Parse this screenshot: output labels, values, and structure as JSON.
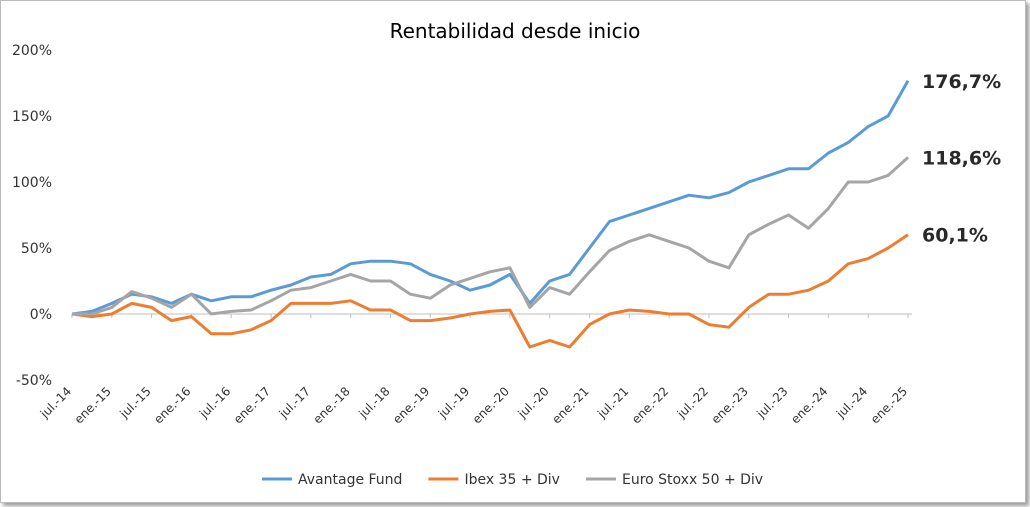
{
  "chart_data": {
    "type": "line",
    "title": "Rentabilidad desde inicio",
    "categories": [
      "jul.-14",
      null,
      "ene.-15",
      null,
      "jul.-15",
      null,
      "ene.-16",
      null,
      "jul.-16",
      null,
      "ene.-17",
      null,
      "jul.-17",
      null,
      "ene.-18",
      null,
      "jul.-18",
      null,
      "ene.-19",
      null,
      "jul.-19",
      null,
      "ene.-20",
      null,
      "jul.-20",
      null,
      "ene.-21",
      null,
      "jul.-21",
      null,
      "ene.-22",
      null,
      "jul.-22",
      null,
      "ene.-23",
      null,
      "jul.-23",
      null,
      "ene.-24",
      null,
      "jul.-24",
      null,
      "ene.-25"
    ],
    "series": [
      {
        "name": "Avantage Fund",
        "color": "#5b9bd5",
        "values": [
          0,
          2,
          8,
          15,
          13,
          8,
          15,
          10,
          13,
          13,
          18,
          22,
          28,
          30,
          38,
          40,
          40,
          38,
          30,
          25,
          18,
          22,
          30,
          8,
          25,
          30,
          50,
          70,
          75,
          80,
          85,
          90,
          88,
          92,
          100,
          105,
          110,
          110,
          122,
          130,
          142,
          150,
          176.7
        ],
        "value_labels": [
          null,
          null,
          null,
          null,
          null,
          null,
          null,
          null,
          null,
          null,
          null,
          null,
          null,
          null,
          null,
          null,
          null,
          null,
          null,
          null,
          null,
          null,
          null,
          null,
          null,
          null,
          null,
          null,
          null,
          null,
          null,
          null,
          null,
          null,
          null,
          null,
          null,
          null,
          null,
          null,
          null,
          null,
          "176,7%"
        ]
      },
      {
        "name": "Ibex 35 + Div",
        "color": "#ed7d31",
        "values": [
          0,
          -2,
          0,
          8,
          5,
          -5,
          -2,
          -15,
          -15,
          -12,
          -5,
          8,
          8,
          8,
          10,
          3,
          3,
          -5,
          -5,
          -3,
          0,
          2,
          3,
          -25,
          -20,
          -25,
          -8,
          0,
          3,
          2,
          0,
          0,
          -8,
          -10,
          5,
          15,
          15,
          18,
          25,
          38,
          42,
          50,
          60.1
        ],
        "value_labels": [
          null,
          null,
          null,
          null,
          null,
          null,
          null,
          null,
          null,
          null,
          null,
          null,
          null,
          null,
          null,
          null,
          null,
          null,
          null,
          null,
          null,
          null,
          null,
          null,
          null,
          null,
          null,
          null,
          null,
          null,
          null,
          null,
          null,
          null,
          null,
          null,
          null,
          null,
          null,
          null,
          null,
          null,
          "60,1%"
        ]
      },
      {
        "name": "Euro Stoxx 50 + Div",
        "color": "#a5a5a5",
        "values": [
          0,
          0,
          5,
          17,
          12,
          5,
          15,
          0,
          2,
          3,
          10,
          18,
          20,
          25,
          30,
          25,
          25,
          15,
          12,
          22,
          27,
          32,
          35,
          5,
          20,
          15,
          32,
          48,
          55,
          60,
          55,
          50,
          40,
          35,
          60,
          68,
          75,
          65,
          80,
          100,
          100,
          105,
          118.6
        ],
        "value_labels": [
          null,
          null,
          null,
          null,
          null,
          null,
          null,
          null,
          null,
          null,
          null,
          null,
          null,
          null,
          null,
          null,
          null,
          null,
          null,
          null,
          null,
          null,
          null,
          null,
          null,
          null,
          null,
          null,
          null,
          null,
          null,
          null,
          null,
          null,
          null,
          null,
          null,
          null,
          null,
          null,
          null,
          null,
          "118,6%"
        ]
      }
    ],
    "ylim": [
      -50,
      200
    ],
    "yticks": [
      {
        "value": -50,
        "label": "-50%"
      },
      {
        "value": 0,
        "label": "0%"
      },
      {
        "value": 50,
        "label": "50%"
      },
      {
        "value": 100,
        "label": "100%"
      },
      {
        "value": 150,
        "label": "150%"
      },
      {
        "value": 200,
        "label": "200%"
      }
    ],
    "grid": false
  }
}
